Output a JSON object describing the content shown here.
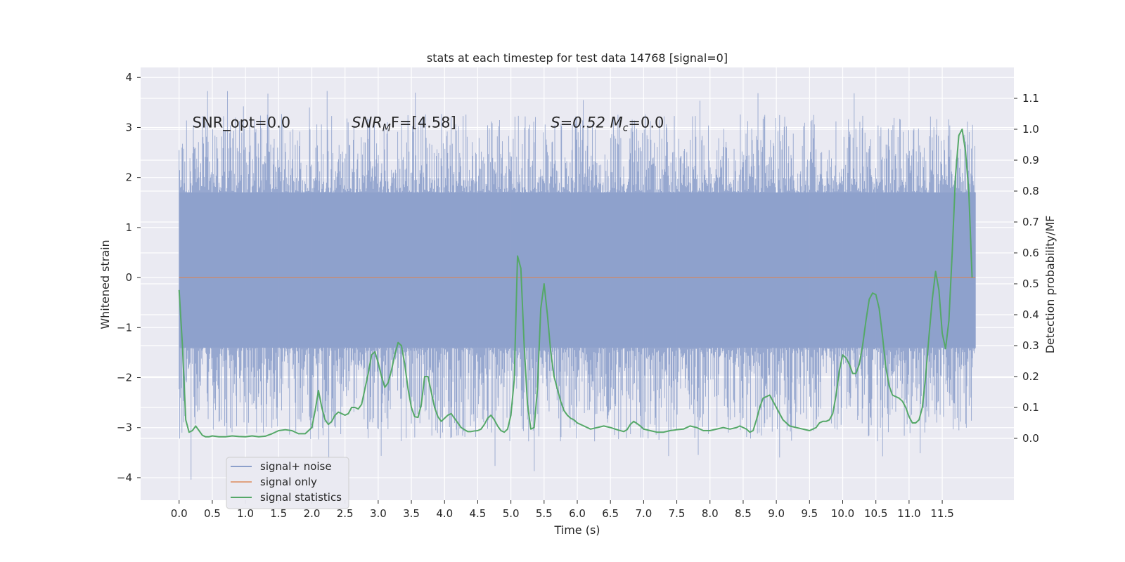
{
  "chart_data": {
    "type": "line",
    "title": "stats at each timestep for test data 14768 [signal=0]",
    "xlabel": "Time (s)",
    "ylabel": "Whitened strain",
    "y2label": "Detection probability/MF",
    "xlim": [
      -0.58,
      12.58
    ],
    "ylim": [
      -4.45,
      4.2
    ],
    "y2lim": [
      -0.2,
      1.2
    ],
    "x_ticks": [
      0.0,
      0.5,
      1.0,
      1.5,
      2.0,
      2.5,
      3.0,
      3.5,
      4.0,
      4.5,
      5.0,
      5.5,
      6.0,
      6.5,
      7.0,
      7.5,
      8.0,
      8.5,
      9.0,
      9.5,
      10.0,
      10.5,
      11.0,
      11.5
    ],
    "x_tick_labels": [
      "0.0",
      "0.5",
      "1.0",
      "1.5",
      "2.0",
      "2.5",
      "3.0",
      "3.5",
      "4.0",
      "4.5",
      "5.0",
      "5.5",
      "6.0",
      "6.5",
      "7.0",
      "7.5",
      "8.0",
      "8.5",
      "9.0",
      "9.5",
      "10.0",
      "10.5",
      "11.0",
      "11.5"
    ],
    "y_ticks": [
      -4,
      -3,
      -2,
      -1,
      0,
      1,
      2,
      3,
      4
    ],
    "y_tick_labels": [
      "−4",
      "−3",
      "−2",
      "−1",
      "0",
      "1",
      "2",
      "3",
      "4"
    ],
    "y2_ticks": [
      0.0,
      0.1,
      0.2,
      0.3,
      0.4,
      0.5,
      0.6,
      0.7,
      0.8,
      0.9,
      1.0,
      1.1
    ],
    "y2_tick_labels": [
      "0.0",
      "0.1",
      "0.2",
      "0.3",
      "0.4",
      "0.5",
      "0.6",
      "0.7",
      "0.8",
      "0.9",
      "1.0",
      "1.1"
    ],
    "grid": true,
    "legend_position": "lower-left",
    "annotations": [
      {
        "text": "SNR_opt=0.0",
        "x": 0.2,
        "y": 3.0
      },
      {
        "text": "SNR",
        "sub": "M",
        "rest": "F=[4.58]",
        "x": 2.6,
        "y": 3.0
      },
      {
        "text": "S=0.52   M",
        "sub": "c",
        "rest": "=0.0",
        "x": 5.6,
        "y": 3.0
      }
    ],
    "series": [
      {
        "name": "signal+ noise",
        "axis": "left",
        "color": "#8da0cb",
        "t_range": [
          0.0,
          12.0
        ],
        "envelope_typical": [
          -1.4,
          1.7
        ],
        "extreme_range": [
          -4.1,
          3.8
        ],
        "render": "dense-noise"
      },
      {
        "name": "signal only",
        "axis": "left",
        "color": "#dd8452",
        "x": [
          0.0,
          12.0
        ],
        "y": [
          0.0,
          0.0
        ]
      },
      {
        "name": "signal statistics",
        "axis": "right",
        "color": "#55a868",
        "x": [
          0.0,
          0.05,
          0.1,
          0.15,
          0.2,
          0.25,
          0.3,
          0.35,
          0.4,
          0.45,
          0.5,
          0.6,
          0.7,
          0.8,
          0.9,
          1.0,
          1.1,
          1.2,
          1.3,
          1.4,
          1.5,
          1.6,
          1.7,
          1.8,
          1.9,
          2.0,
          2.05,
          2.1,
          2.15,
          2.2,
          2.25,
          2.3,
          2.35,
          2.4,
          2.45,
          2.5,
          2.55,
          2.6,
          2.65,
          2.7,
          2.75,
          2.8,
          2.85,
          2.9,
          2.95,
          3.0,
          3.05,
          3.1,
          3.15,
          3.2,
          3.25,
          3.3,
          3.35,
          3.4,
          3.45,
          3.5,
          3.55,
          3.6,
          3.65,
          3.7,
          3.75,
          3.8,
          3.85,
          3.9,
          3.95,
          4.0,
          4.05,
          4.1,
          4.15,
          4.2,
          4.25,
          4.3,
          4.35,
          4.4,
          4.45,
          4.5,
          4.55,
          4.6,
          4.65,
          4.7,
          4.75,
          4.8,
          4.85,
          4.9,
          4.95,
          5.0,
          5.05,
          5.1,
          5.15,
          5.2,
          5.25,
          5.3,
          5.35,
          5.4,
          5.45,
          5.5,
          5.55,
          5.6,
          5.65,
          5.7,
          5.75,
          5.8,
          5.85,
          5.9,
          5.95,
          6.0,
          6.1,
          6.2,
          6.3,
          6.4,
          6.5,
          6.6,
          6.7,
          6.75,
          6.8,
          6.85,
          6.9,
          6.95,
          7.0,
          7.1,
          7.2,
          7.3,
          7.4,
          7.5,
          7.6,
          7.7,
          7.8,
          7.9,
          8.0,
          8.1,
          8.2,
          8.3,
          8.4,
          8.45,
          8.5,
          8.55,
          8.6,
          8.65,
          8.7,
          8.75,
          8.8,
          8.9,
          9.0,
          9.1,
          9.2,
          9.3,
          9.4,
          9.5,
          9.6,
          9.65,
          9.7,
          9.75,
          9.8,
          9.85,
          9.9,
          9.95,
          10.0,
          10.05,
          10.1,
          10.15,
          10.2,
          10.25,
          10.3,
          10.35,
          10.4,
          10.45,
          10.5,
          10.55,
          10.6,
          10.65,
          10.7,
          10.75,
          10.8,
          10.85,
          10.9,
          10.95,
          11.0,
          11.05,
          11.1,
          11.15,
          11.2,
          11.25,
          11.3,
          11.35,
          11.4,
          11.45,
          11.5,
          11.55,
          11.6,
          11.65,
          11.7,
          11.75,
          11.8,
          11.85,
          11.9,
          11.95
        ],
        "y": [
          0.48,
          0.3,
          0.06,
          0.02,
          0.025,
          0.04,
          0.025,
          0.01,
          0.005,
          0.005,
          0.008,
          0.005,
          0.005,
          0.008,
          0.006,
          0.005,
          0.008,
          0.005,
          0.007,
          0.015,
          0.025,
          0.028,
          0.025,
          0.015,
          0.015,
          0.035,
          0.09,
          0.155,
          0.1,
          0.06,
          0.045,
          0.055,
          0.075,
          0.085,
          0.08,
          0.075,
          0.08,
          0.1,
          0.1,
          0.095,
          0.11,
          0.16,
          0.21,
          0.27,
          0.28,
          0.245,
          0.2,
          0.165,
          0.18,
          0.22,
          0.27,
          0.31,
          0.3,
          0.24,
          0.16,
          0.1,
          0.07,
          0.068,
          0.11,
          0.2,
          0.2,
          0.15,
          0.1,
          0.07,
          0.055,
          0.065,
          0.075,
          0.08,
          0.065,
          0.05,
          0.035,
          0.028,
          0.022,
          0.022,
          0.024,
          0.025,
          0.03,
          0.045,
          0.065,
          0.075,
          0.06,
          0.04,
          0.025,
          0.02,
          0.03,
          0.075,
          0.19,
          0.59,
          0.55,
          0.3,
          0.11,
          0.03,
          0.035,
          0.16,
          0.42,
          0.5,
          0.4,
          0.28,
          0.2,
          0.16,
          0.12,
          0.09,
          0.075,
          0.065,
          0.06,
          0.05,
          0.04,
          0.03,
          0.035,
          0.04,
          0.035,
          0.028,
          0.022,
          0.028,
          0.045,
          0.055,
          0.048,
          0.04,
          0.03,
          0.025,
          0.02,
          0.02,
          0.025,
          0.028,
          0.03,
          0.04,
          0.035,
          0.025,
          0.025,
          0.03,
          0.035,
          0.03,
          0.035,
          0.04,
          0.035,
          0.03,
          0.02,
          0.025,
          0.06,
          0.1,
          0.13,
          0.14,
          0.1,
          0.06,
          0.04,
          0.035,
          0.03,
          0.025,
          0.035,
          0.05,
          0.055,
          0.055,
          0.06,
          0.08,
          0.14,
          0.22,
          0.27,
          0.26,
          0.24,
          0.21,
          0.21,
          0.24,
          0.3,
          0.38,
          0.45,
          0.47,
          0.465,
          0.42,
          0.33,
          0.23,
          0.17,
          0.14,
          0.135,
          0.13,
          0.12,
          0.1,
          0.07,
          0.05,
          0.05,
          0.06,
          0.1,
          0.2,
          0.33,
          0.45,
          0.54,
          0.48,
          0.34,
          0.29,
          0.38,
          0.6,
          0.85,
          0.98,
          1.0,
          0.93,
          0.8,
          0.52
        ]
      }
    ]
  }
}
